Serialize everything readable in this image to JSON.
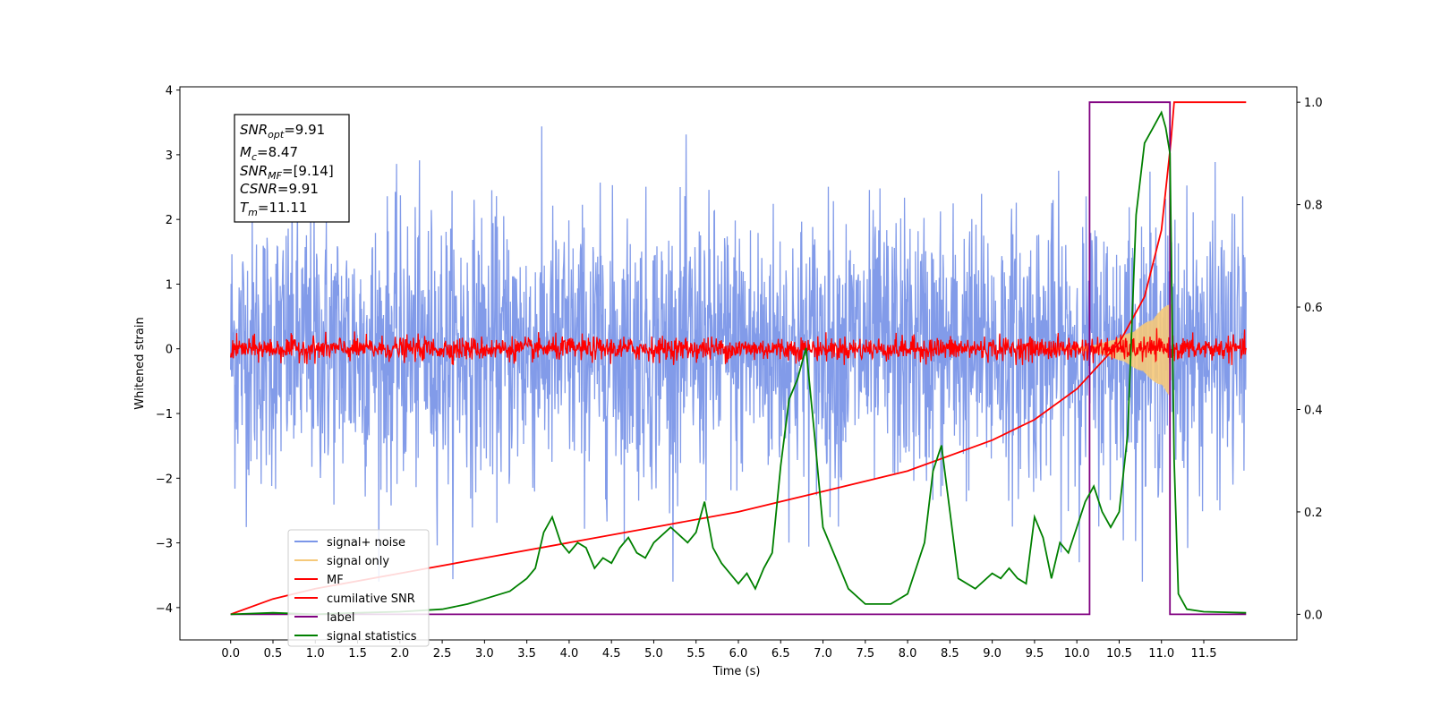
{
  "chart_data": {
    "type": "line",
    "xlabel": "Time (s)",
    "ylabel": "Whitened strain",
    "xlim": [
      -0.6,
      12.6
    ],
    "ylim": [
      -4.5,
      4.05
    ],
    "y2lim": [
      -0.05,
      1.03
    ],
    "x_ticks": [
      "0.0",
      "0.5",
      "1.0",
      "1.5",
      "2.0",
      "2.5",
      "3.0",
      "3.5",
      "4.0",
      "4.5",
      "5.0",
      "5.5",
      "6.0",
      "6.5",
      "7.0",
      "7.5",
      "8.0",
      "8.5",
      "9.0",
      "9.5",
      "10.0",
      "10.5",
      "11.0",
      "11.5"
    ],
    "y_ticks": [
      "4",
      "3",
      "2",
      "1",
      "0",
      "−1",
      "−2",
      "−3",
      "−4"
    ],
    "y2_ticks": [
      "1.0",
      "0.8",
      "0.6",
      "0.4",
      "0.2",
      "0.0"
    ],
    "legend_placement": "lower-left",
    "info_box": {
      "snr_opt": {
        "base": "SNR",
        "sub": "opt",
        "value": "=9.91"
      },
      "mc": {
        "base": "M",
        "sub": "c",
        "value": "=8.47"
      },
      "snr_mf": {
        "base": "SNR",
        "sub": "MF",
        "value": "=[9.14]"
      },
      "csnr": {
        "base": "CSNR",
        "value": "=9.91"
      },
      "tm": {
        "base": "T",
        "sub": "m",
        "value": "=11.11"
      }
    },
    "series": [
      {
        "name": "signal+ noise",
        "color": "#7b96e8",
        "axis": "left",
        "kind": "noise",
        "x_range": [
          0,
          12.0
        ],
        "amplitude_range": [
          -3.6,
          3.7
        ]
      },
      {
        "name": "signal only",
        "color": "#f5c97a",
        "axis": "left",
        "kind": "chirp",
        "x_range": [
          9.5,
          11.11
        ],
        "peak_amplitude": 0.75
      },
      {
        "name": "MF",
        "color": "#ff0000",
        "axis": "left",
        "kind": "noise",
        "x_range": [
          0,
          12.0
        ],
        "amplitude_range": [
          -0.25,
          0.35
        ]
      },
      {
        "name": "cumilative SNR",
        "color": "#ff0000",
        "axis": "right",
        "x": [
          0,
          0.5,
          1,
          2,
          3,
          4,
          5,
          6,
          7,
          8,
          9,
          9.5,
          10,
          10.5,
          10.8,
          11.0,
          11.11,
          11.15,
          12.0
        ],
        "y": [
          0.0,
          0.03,
          0.05,
          0.08,
          0.11,
          0.14,
          0.17,
          0.2,
          0.24,
          0.28,
          0.34,
          0.38,
          0.44,
          0.53,
          0.62,
          0.75,
          0.92,
          1.0,
          1.0
        ]
      },
      {
        "name": "label",
        "color": "#800080",
        "axis": "right",
        "x": [
          0,
          10.15,
          10.15,
          11.1,
          11.1,
          12.0
        ],
        "y": [
          0,
          0,
          1,
          1,
          0,
          0
        ]
      },
      {
        "name": "signal statistics",
        "color": "#008000",
        "axis": "right",
        "x": [
          0,
          0.5,
          1.0,
          1.5,
          2.0,
          2.5,
          2.8,
          3.0,
          3.3,
          3.5,
          3.6,
          3.7,
          3.8,
          3.9,
          4.0,
          4.1,
          4.2,
          4.3,
          4.4,
          4.5,
          4.6,
          4.7,
          4.8,
          4.9,
          5.0,
          5.2,
          5.4,
          5.5,
          5.6,
          5.7,
          5.8,
          5.9,
          6.0,
          6.1,
          6.2,
          6.3,
          6.4,
          6.5,
          6.6,
          6.7,
          6.8,
          6.9,
          7.0,
          7.1,
          7.2,
          7.3,
          7.5,
          7.8,
          8.0,
          8.2,
          8.3,
          8.4,
          8.5,
          8.6,
          8.8,
          9.0,
          9.1,
          9.2,
          9.3,
          9.4,
          9.5,
          9.6,
          9.7,
          9.8,
          9.9,
          10.0,
          10.1,
          10.2,
          10.3,
          10.4,
          10.5,
          10.6,
          10.7,
          10.8,
          10.9,
          11.0,
          11.05,
          11.1,
          11.15,
          11.2,
          11.3,
          11.5,
          12.0
        ],
        "y": [
          0.0,
          0.003,
          0.0,
          0.003,
          0.005,
          0.01,
          0.02,
          0.03,
          0.045,
          0.07,
          0.09,
          0.16,
          0.19,
          0.14,
          0.12,
          0.14,
          0.13,
          0.09,
          0.11,
          0.1,
          0.13,
          0.15,
          0.12,
          0.11,
          0.14,
          0.17,
          0.14,
          0.16,
          0.22,
          0.13,
          0.1,
          0.08,
          0.06,
          0.08,
          0.05,
          0.09,
          0.12,
          0.29,
          0.42,
          0.46,
          0.52,
          0.35,
          0.17,
          0.13,
          0.09,
          0.05,
          0.02,
          0.02,
          0.04,
          0.14,
          0.28,
          0.33,
          0.2,
          0.07,
          0.05,
          0.08,
          0.07,
          0.09,
          0.07,
          0.06,
          0.19,
          0.15,
          0.07,
          0.14,
          0.12,
          0.17,
          0.22,
          0.25,
          0.2,
          0.17,
          0.2,
          0.35,
          0.78,
          0.92,
          0.95,
          0.98,
          0.95,
          0.9,
          0.3,
          0.04,
          0.01,
          0.005,
          0.003
        ]
      }
    ]
  }
}
